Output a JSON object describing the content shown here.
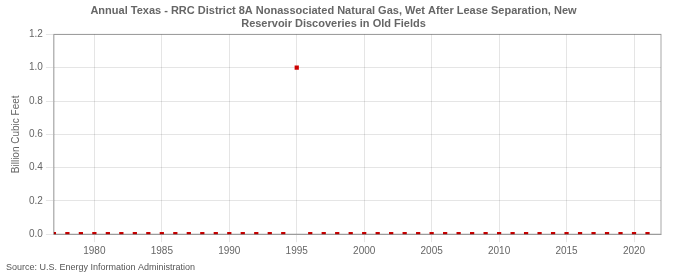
{
  "chart_data": {
    "type": "scatter",
    "title": "Annual Texas - RRC District 8A Nonassociated Natural Gas, Wet After Lease Separation, New\nReservoir Discoveries in Old Fields",
    "ylabel": "Billion Cubic Feet",
    "annotations": [
      "Source: U.S. Energy Information Administration"
    ],
    "color": "#cc0000",
    "marker": "square",
    "xlim": [
      1977,
      2022
    ],
    "xticks": [
      1980,
      1985,
      1990,
      1995,
      2000,
      2005,
      2010,
      2015,
      2020
    ],
    "ylim": [
      0,
      1.2
    ],
    "yticks": [
      {
        "value": 0,
        "label": "0.0"
      },
      0.2,
      0.4,
      0.6,
      0.8,
      {
        "value": 1,
        "label": "1.0"
      },
      1.2
    ],
    "grid": true,
    "x": [
      1977,
      1978,
      1979,
      1980,
      1981,
      1982,
      1983,
      1984,
      1985,
      1986,
      1987,
      1988,
      1989,
      1990,
      1991,
      1992,
      1993,
      1994,
      1995,
      1996,
      1997,
      1998,
      1999,
      2000,
      2001,
      2002,
      2003,
      2004,
      2005,
      2006,
      2007,
      2008,
      2009,
      2010,
      2011,
      2012,
      2013,
      2014,
      2015,
      2016,
      2017,
      2018,
      2019,
      2020,
      2021
    ],
    "values": [
      0,
      0,
      0,
      0,
      0,
      0,
      0,
      0,
      0,
      0,
      0,
      0,
      0,
      0,
      0,
      0,
      0,
      0,
      1.0,
      0,
      0,
      0,
      0,
      0,
      0,
      0,
      0,
      0,
      0,
      0,
      0,
      0,
      0,
      0,
      0,
      0,
      0,
      0,
      0,
      0,
      0,
      0,
      0,
      0,
      0
    ]
  }
}
